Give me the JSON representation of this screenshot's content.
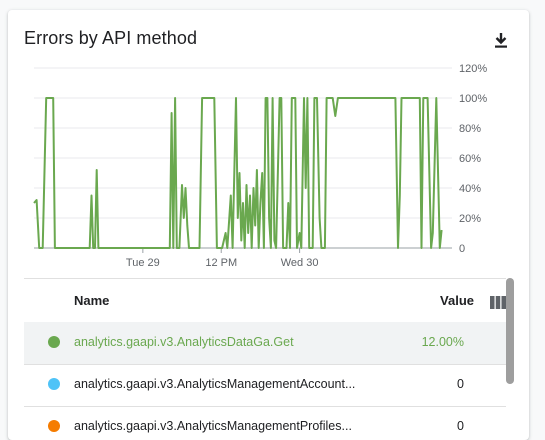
{
  "card": {
    "title": "Errors by API method"
  },
  "chart_data": {
    "type": "line",
    "y_ticks": [
      "120%",
      "100%",
      "80%",
      "60%",
      "40%",
      "20%",
      "0"
    ],
    "y_range": [
      0,
      120
    ],
    "x_ticks": [
      "Tue 29",
      "12 PM",
      "Wed 30"
    ],
    "grid": true,
    "series": [
      {
        "color": "#6aa84f",
        "points": [
          [
            0.0,
            30
          ],
          [
            0.3,
            32
          ],
          [
            0.6,
            0
          ],
          [
            1.0,
            0
          ],
          [
            1.4,
            100
          ],
          [
            1.6,
            100
          ],
          [
            2.0,
            100
          ],
          [
            2.2,
            100
          ],
          [
            2.4,
            0
          ],
          [
            3.0,
            0
          ],
          [
            6.4,
            0
          ],
          [
            6.6,
            35
          ],
          [
            6.8,
            0
          ],
          [
            7.0,
            0
          ],
          [
            7.2,
            52
          ],
          [
            7.4,
            0
          ],
          [
            15.0,
            0
          ],
          [
            15.6,
            0
          ],
          [
            15.8,
            90
          ],
          [
            16.0,
            0
          ],
          [
            16.2,
            100
          ],
          [
            16.4,
            0
          ],
          [
            16.7,
            0
          ],
          [
            17.0,
            42
          ],
          [
            17.2,
            20
          ],
          [
            17.4,
            40
          ],
          [
            17.6,
            15
          ],
          [
            17.8,
            0
          ],
          [
            19.0,
            0
          ],
          [
            19.3,
            100
          ],
          [
            20.7,
            100
          ],
          [
            21.0,
            0
          ],
          [
            21.4,
            0
          ],
          [
            21.6,
            0
          ],
          [
            22.0,
            10
          ],
          [
            22.2,
            0
          ],
          [
            22.6,
            35
          ],
          [
            22.8,
            0
          ],
          [
            23.0,
            50
          ],
          [
            23.2,
            100
          ],
          [
            23.4,
            20
          ],
          [
            23.6,
            50
          ],
          [
            23.8,
            5
          ],
          [
            24.0,
            30
          ],
          [
            24.2,
            0
          ],
          [
            24.4,
            42
          ],
          [
            24.6,
            10
          ],
          [
            24.8,
            35
          ],
          [
            25.0,
            0
          ],
          [
            25.2,
            40
          ],
          [
            25.4,
            15
          ],
          [
            25.6,
            52
          ],
          [
            25.8,
            0
          ],
          [
            26.0,
            30
          ],
          [
            26.2,
            50
          ],
          [
            26.4,
            0
          ],
          [
            26.6,
            100
          ],
          [
            26.8,
            100
          ],
          [
            27.0,
            20
          ],
          [
            27.2,
            0
          ],
          [
            27.4,
            100
          ],
          [
            27.6,
            5
          ],
          [
            27.8,
            0
          ],
          [
            28.2,
            100
          ],
          [
            28.4,
            100
          ],
          [
            28.6,
            0
          ],
          [
            29.0,
            0
          ],
          [
            29.2,
            30
          ],
          [
            29.4,
            0
          ],
          [
            29.6,
            100
          ],
          [
            30.0,
            100
          ],
          [
            30.2,
            0
          ],
          [
            30.5,
            10
          ],
          [
            30.7,
            0
          ],
          [
            31.0,
            100
          ],
          [
            31.2,
            40
          ],
          [
            31.4,
            100
          ],
          [
            31.6,
            0
          ],
          [
            32.0,
            0
          ],
          [
            32.2,
            100
          ],
          [
            32.5,
            100
          ],
          [
            32.8,
            20
          ],
          [
            33.0,
            0
          ],
          [
            33.4,
            0
          ],
          [
            33.6,
            100
          ],
          [
            34.0,
            100
          ],
          [
            34.3,
            100
          ],
          [
            34.6,
            88
          ],
          [
            34.9,
            100
          ],
          [
            35.4,
            100
          ],
          [
            36.0,
            100
          ],
          [
            36.4,
            100
          ],
          [
            38.0,
            100
          ],
          [
            41.0,
            100
          ],
          [
            41.5,
            100
          ],
          [
            41.8,
            0
          ],
          [
            42.0,
            35
          ],
          [
            42.2,
            100
          ],
          [
            42.4,
            100
          ],
          [
            42.6,
            100
          ],
          [
            43.0,
            100
          ],
          [
            43.4,
            100
          ],
          [
            44.3,
            100
          ],
          [
            44.5,
            0
          ],
          [
            44.7,
            100
          ],
          [
            45.0,
            100
          ],
          [
            45.2,
            100
          ],
          [
            45.6,
            0
          ],
          [
            45.8,
            10
          ],
          [
            46.2,
            100
          ],
          [
            46.6,
            0
          ],
          [
            46.8,
            12
          ]
        ]
      }
    ]
  },
  "table": {
    "headers": {
      "name": "Name",
      "value": "Value"
    },
    "rows": [
      {
        "name": "analytics.gaapi.v3.AnalyticsDataGa.Get",
        "value": "12.00%",
        "color": "#6aa84f",
        "selected": true
      },
      {
        "name": "analytics.gaapi.v3.AnalyticsManagementAccount...",
        "value": "0",
        "color": "#4fc3f7",
        "selected": false
      },
      {
        "name": "analytics.gaapi.v3.AnalyticsManagementProfiles...",
        "value": "0",
        "color": "#f57c00",
        "selected": false
      }
    ]
  },
  "icons": {
    "download": "download-icon",
    "columns": "view-column-icon"
  }
}
